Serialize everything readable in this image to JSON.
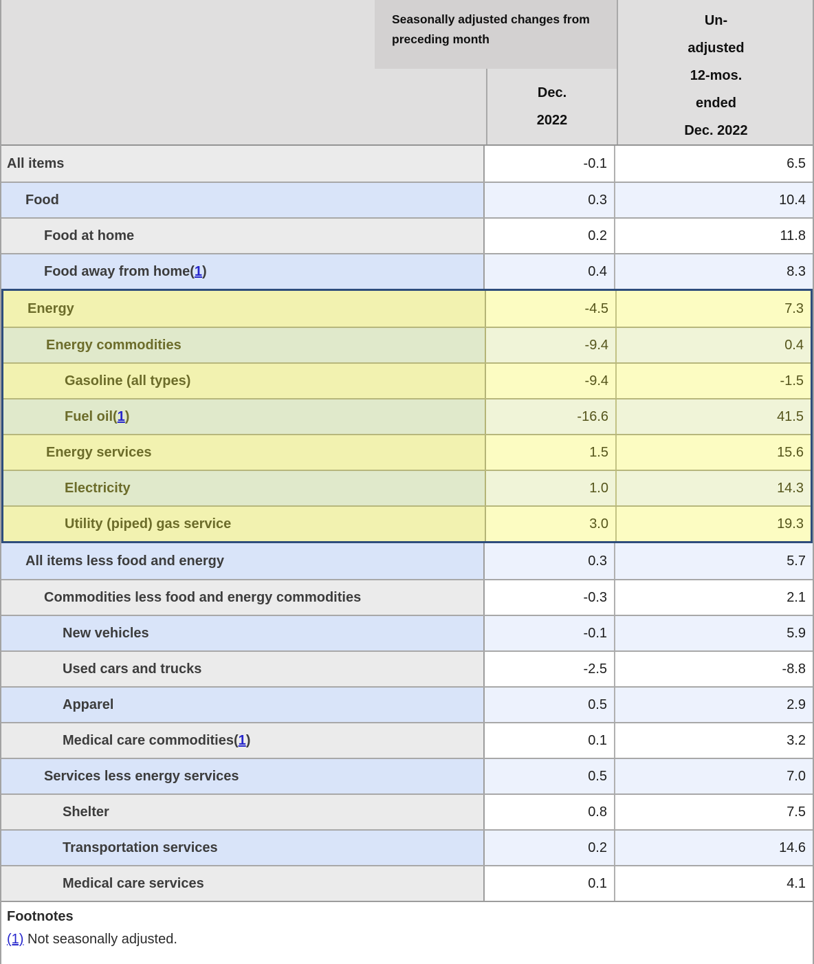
{
  "header": {
    "span_label": "Seasonally adjusted changes from preceding month",
    "dec_label_lines": [
      "Dec.",
      "2022"
    ],
    "unadjusted_label_lines": [
      "Un-",
      "adjusted",
      "12-mos.",
      "ended",
      "Dec. 2022"
    ]
  },
  "columns": {
    "month_column": "Dec. 2022",
    "year_column": "Un-adjusted 12-mos. ended Dec. 2022"
  },
  "rows": [
    {
      "label": "All items",
      "indent": 0,
      "tone": "gray",
      "group": "top",
      "footnote": "",
      "dec": "-0.1",
      "yr": "6.5"
    },
    {
      "label": "Food",
      "indent": 1,
      "tone": "blue",
      "group": "top",
      "footnote": "",
      "dec": "0.3",
      "yr": "10.4"
    },
    {
      "label": "Food at home",
      "indent": 2,
      "tone": "gray",
      "group": "top",
      "footnote": "",
      "dec": "0.2",
      "yr": "11.8"
    },
    {
      "label": "Food away from home",
      "indent": 2,
      "tone": "blue",
      "group": "top",
      "footnote": "1",
      "dec": "0.4",
      "yr": "8.3"
    },
    {
      "label": "Energy",
      "indent": 1,
      "tone": "yellow",
      "group": "energy",
      "footnote": "",
      "dec": "-4.5",
      "yr": "7.3"
    },
    {
      "label": "Energy commodities",
      "indent": 2,
      "tone": "green",
      "group": "energy",
      "footnote": "",
      "dec": "-9.4",
      "yr": "0.4"
    },
    {
      "label": "Gasoline (all types)",
      "indent": 3,
      "tone": "yellow",
      "group": "energy",
      "footnote": "",
      "dec": "-9.4",
      "yr": "-1.5"
    },
    {
      "label": "Fuel oil",
      "indent": 3,
      "tone": "green",
      "group": "energy",
      "footnote": "1",
      "dec": "-16.6",
      "yr": "41.5"
    },
    {
      "label": "Energy services",
      "indent": 2,
      "tone": "yellow",
      "group": "energy",
      "footnote": "",
      "dec": "1.5",
      "yr": "15.6"
    },
    {
      "label": "Electricity",
      "indent": 3,
      "tone": "green",
      "group": "energy",
      "footnote": "",
      "dec": "1.0",
      "yr": "14.3"
    },
    {
      "label": "Utility (piped) gas service",
      "indent": 3,
      "tone": "yellow",
      "group": "energy",
      "footnote": "",
      "dec": "3.0",
      "yr": "19.3"
    },
    {
      "label": "All items less food and energy",
      "indent": 1,
      "tone": "blue",
      "group": "bottom",
      "footnote": "",
      "dec": "0.3",
      "yr": "5.7"
    },
    {
      "label": "Commodities less food and energy commodities",
      "indent": 2,
      "tone": "gray",
      "group": "bottom",
      "footnote": "",
      "dec": "-0.3",
      "yr": "2.1"
    },
    {
      "label": "New vehicles",
      "indent": 3,
      "tone": "blue",
      "group": "bottom",
      "footnote": "",
      "dec": "-0.1",
      "yr": "5.9"
    },
    {
      "label": "Used cars and trucks",
      "indent": 3,
      "tone": "gray",
      "group": "bottom",
      "footnote": "",
      "dec": "-2.5",
      "yr": "-8.8"
    },
    {
      "label": "Apparel",
      "indent": 3,
      "tone": "blue",
      "group": "bottom",
      "footnote": "",
      "dec": "0.5",
      "yr": "2.9"
    },
    {
      "label": "Medical care commodities",
      "indent": 3,
      "tone": "gray",
      "group": "bottom",
      "footnote": "1",
      "dec": "0.1",
      "yr": "3.2"
    },
    {
      "label": "Services less energy services",
      "indent": 2,
      "tone": "blue",
      "group": "bottom",
      "footnote": "",
      "dec": "0.5",
      "yr": "7.0"
    },
    {
      "label": "Shelter",
      "indent": 3,
      "tone": "gray",
      "group": "bottom",
      "footnote": "",
      "dec": "0.8",
      "yr": "7.5"
    },
    {
      "label": "Transportation services",
      "indent": 3,
      "tone": "blue",
      "group": "bottom",
      "footnote": "",
      "dec": "0.2",
      "yr": "14.6"
    },
    {
      "label": "Medical care services",
      "indent": 3,
      "tone": "gray",
      "group": "bottom",
      "footnote": "",
      "dec": "0.1",
      "yr": "4.1"
    }
  ],
  "footnotes": {
    "title": "Footnotes",
    "items": [
      {
        "marker": "(1)",
        "text": "Not seasonally adjusted."
      }
    ]
  },
  "colors": {
    "group_border_navy": "#2e4d7c",
    "link_blue": "#2626cc",
    "energy_text_olive": "#6c6c2a",
    "row_blue": "#d9e4f9",
    "row_gray": "#ebebeb",
    "row_yellow": "#f2f2b0",
    "row_green": "#e0e9cb",
    "header_gray": "#e0dfdf",
    "header_span_gray": "#d3d1d1"
  }
}
